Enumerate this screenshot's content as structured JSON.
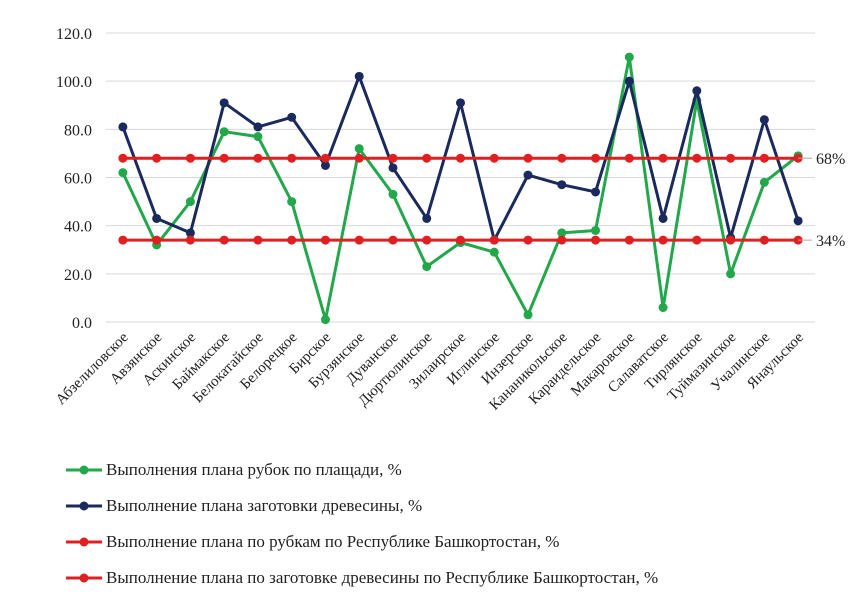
{
  "chart_data": {
    "type": "line",
    "categories": [
      "Абзелиловское",
      "Авзянское",
      "Аскинское",
      "Баймакское",
      "Белокатайское",
      "Белорецкое",
      "Бирское",
      "Бурзянское",
      "Дуванское",
      "Дюртюлинское",
      "Зилаирское",
      "Иглинское",
      "Инзерское",
      "Кананикольское",
      "Караидельское",
      "Макаровское",
      "Салаватское",
      "Тирлянское",
      "Туймазинское",
      "Учалинское",
      "Янаульское"
    ],
    "series": [
      {
        "name": "Выполнения плана рубок по плащади, %",
        "color": "#22a84a",
        "values": [
          62,
          32,
          50,
          79,
          77,
          50,
          1,
          72,
          53,
          23,
          33,
          29,
          3,
          37,
          38,
          110,
          6,
          92,
          20,
          58,
          69
        ]
      },
      {
        "name": "Выполнение плана заготовки древесины, %",
        "color": "#1a2a5c",
        "values": [
          81,
          43,
          37,
          91,
          81,
          85,
          65,
          102,
          64,
          43,
          91,
          34,
          61,
          57,
          54,
          100,
          43,
          96,
          35,
          84,
          42
        ]
      },
      {
        "name": "Выполнение плана по рубкам по Республике Башкортостан, %",
        "color": "#e02020",
        "values": [
          68,
          68,
          68,
          68,
          68,
          68,
          68,
          68,
          68,
          68,
          68,
          68,
          68,
          68,
          68,
          68,
          68,
          68,
          68,
          68,
          68
        ]
      },
      {
        "name": "Выполнение плана по заготовке древесины по Республике Башкортостан, %",
        "color": "#e02020",
        "values": [
          34,
          34,
          34,
          34,
          34,
          34,
          34,
          34,
          34,
          34,
          34,
          34,
          34,
          34,
          34,
          34,
          34,
          34,
          34,
          34,
          34
        ]
      }
    ],
    "yticks": [
      "0.0",
      "20.0",
      "40.0",
      "60.0",
      "80.0",
      "100.0",
      "120.0"
    ],
    "ylim": [
      0,
      120
    ],
    "grid": true,
    "legend_position": "bottom",
    "annotations": [
      {
        "text": "68%",
        "y": 68
      },
      {
        "text": "34%",
        "y": 34
      }
    ]
  }
}
